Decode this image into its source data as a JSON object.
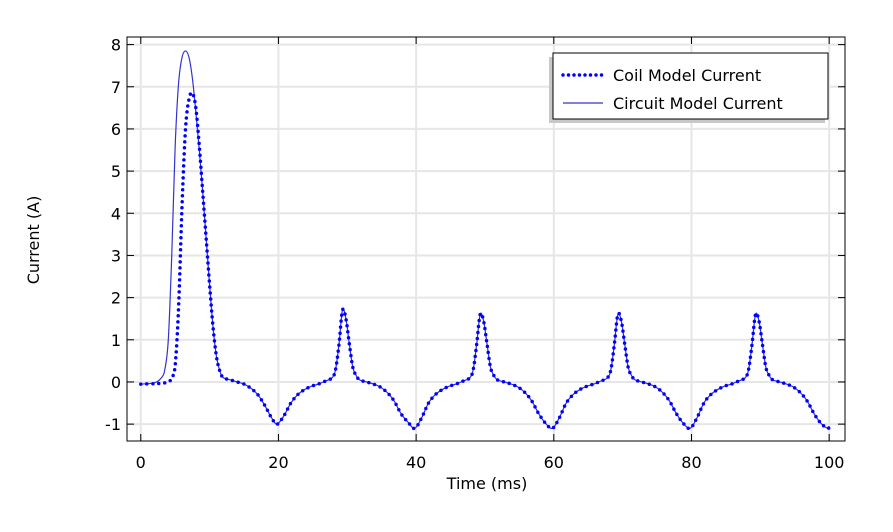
{
  "chart_data": {
    "type": "line",
    "title": "",
    "xlabel": "Time (ms)",
    "ylabel": "Current (A)",
    "xlim": [
      -2,
      102.3
    ],
    "ylim": [
      -1.4,
      8.18
    ],
    "xticks": [
      0,
      20,
      40,
      60,
      80,
      100
    ],
    "yticks": [
      -1,
      0,
      1,
      2,
      3,
      4,
      5,
      6,
      7,
      8
    ],
    "grid": true,
    "legend_position": "top-right",
    "series": [
      {
        "name": "Coil Model Current",
        "style": "dotted",
        "color": "#0000ff",
        "x": [
          0,
          2,
          3,
          4,
          4.5,
          5,
          5.5,
          6,
          6.5,
          7,
          7.5,
          8,
          8.5,
          9,
          9.5,
          10,
          10.5,
          11,
          11.5,
          12,
          13,
          14,
          15,
          16,
          17,
          18,
          19,
          19.8,
          20.8,
          21.8,
          22.8,
          23.8,
          24.8,
          25.8,
          26.8,
          27.8,
          28.3,
          28.8,
          29.3,
          29.8,
          30.3,
          30.8,
          31.3,
          31.8,
          32.8,
          33.8,
          34.8,
          35.8,
          36.8,
          37.8,
          38.8,
          39.8,
          40.8,
          41.8,
          42.8,
          43.8,
          44.8,
          45.8,
          46.8,
          47.8,
          48.3,
          48.8,
          49.3,
          49.8,
          50.3,
          50.8,
          51.3,
          51.8,
          52.8,
          53.8,
          54.8,
          55.8,
          56.8,
          57.8,
          58.8,
          59.8,
          60.8,
          61.8,
          62.8,
          63.8,
          64.8,
          65.8,
          66.8,
          67.8,
          68.3,
          68.8,
          69.3,
          69.8,
          70.3,
          70.8,
          71.3,
          71.8,
          72.8,
          73.8,
          74.8,
          75.8,
          76.8,
          77.8,
          78.8,
          79.8,
          80.8,
          81.8,
          82.8,
          83.8,
          84.8,
          85.8,
          86.8,
          87.8,
          88.3,
          88.8,
          89.3,
          89.8,
          90.3,
          90.8,
          91.3,
          91.8,
          92.8,
          93.8,
          94.8,
          95.8,
          96.8,
          97.8,
          98.8,
          99.8,
          100
        ],
        "y": [
          -0.05,
          -0.04,
          -0.03,
          0.0,
          0.1,
          0.4,
          1.8,
          4.2,
          6.0,
          6.7,
          6.85,
          6.5,
          5.6,
          4.5,
          3.4,
          2.3,
          1.3,
          0.6,
          0.25,
          0.1,
          0.05,
          0.0,
          -0.05,
          -0.15,
          -0.3,
          -0.55,
          -0.85,
          -1.0,
          -0.8,
          -0.5,
          -0.3,
          -0.18,
          -0.1,
          -0.05,
          0.02,
          0.1,
          0.3,
          0.9,
          1.7,
          1.5,
          0.9,
          0.35,
          0.15,
          0.05,
          0,
          -0.05,
          -0.12,
          -0.25,
          -0.45,
          -0.75,
          -0.95,
          -1.1,
          -0.85,
          -0.5,
          -0.3,
          -0.18,
          -0.1,
          -0.05,
          0.02,
          0.1,
          0.3,
          0.9,
          1.6,
          1.45,
          0.9,
          0.35,
          0.15,
          0.05,
          0,
          -0.05,
          -0.12,
          -0.25,
          -0.45,
          -0.75,
          -0.98,
          -1.1,
          -0.85,
          -0.5,
          -0.3,
          -0.18,
          -0.1,
          -0.05,
          0.02,
          0.1,
          0.3,
          0.9,
          1.6,
          1.45,
          0.9,
          0.35,
          0.15,
          0.05,
          0,
          -0.05,
          -0.12,
          -0.25,
          -0.45,
          -0.75,
          -0.98,
          -1.1,
          -0.85,
          -0.5,
          -0.3,
          -0.18,
          -0.1,
          -0.05,
          0.02,
          0.1,
          0.3,
          0.9,
          1.6,
          1.45,
          0.9,
          0.35,
          0.15,
          0.05,
          0,
          -0.05,
          -0.12,
          -0.25,
          -0.45,
          -0.75,
          -0.98,
          -1.1,
          -1.05
        ]
      },
      {
        "name": "Circuit Model Current",
        "style": "solid",
        "color": "#3333cc",
        "x": [
          0,
          2,
          3,
          3.5,
          4,
          4.5,
          5,
          5.5,
          6,
          6.5,
          7,
          7.5,
          8,
          8.5,
          9,
          9.5,
          10,
          10.5,
          11,
          11.5,
          12,
          13,
          14,
          15,
          16,
          17,
          18,
          19,
          19.8,
          20.8,
          21.8,
          22.8,
          23.8,
          24.8,
          25.8,
          26.8,
          27.8,
          28.3,
          28.8,
          29.3,
          29.8,
          30.3,
          30.8,
          31.3,
          31.8,
          32.8,
          33.8,
          34.8,
          35.8,
          36.8,
          37.8,
          38.8,
          39.8,
          40.8,
          41.8,
          42.8,
          43.8,
          44.8,
          45.8,
          46.8,
          47.8,
          48.3,
          48.8,
          49.3,
          49.8,
          50.3,
          50.8,
          51.3,
          51.8,
          52.8,
          53.8,
          54.8,
          55.8,
          56.8,
          57.8,
          58.8,
          59.8,
          60.8,
          61.8,
          62.8,
          63.8,
          64.8,
          65.8,
          66.8,
          67.8,
          68.3,
          68.8,
          69.3,
          69.8,
          70.3,
          70.8,
          71.3,
          71.8,
          72.8,
          73.8,
          74.8,
          75.8,
          76.8,
          77.8,
          78.8,
          79.8,
          80.8,
          81.8,
          82.8,
          83.8,
          84.8,
          85.8,
          86.8,
          87.8,
          88.3,
          88.8,
          89.3,
          89.8,
          90.3,
          90.8,
          91.3,
          91.8,
          92.8,
          93.8,
          94.8,
          95.8,
          96.8,
          97.8,
          98.8,
          99.8,
          100
        ],
        "y": [
          -0.05,
          -0.02,
          0.1,
          0.3,
          1.0,
          3.0,
          5.6,
          7.1,
          7.7,
          7.85,
          7.7,
          7.2,
          6.4,
          5.5,
          4.5,
          3.4,
          2.3,
          1.3,
          0.6,
          0.25,
          0.1,
          0.05,
          0.0,
          -0.05,
          -0.15,
          -0.3,
          -0.55,
          -0.85,
          -1.0,
          -0.8,
          -0.5,
          -0.3,
          -0.18,
          -0.1,
          -0.05,
          0.02,
          0.1,
          0.3,
          0.9,
          1.7,
          1.5,
          0.9,
          0.35,
          0.15,
          0.05,
          0,
          -0.05,
          -0.12,
          -0.25,
          -0.45,
          -0.75,
          -0.95,
          -1.1,
          -0.85,
          -0.5,
          -0.3,
          -0.18,
          -0.1,
          -0.05,
          0.02,
          0.1,
          0.3,
          0.9,
          1.6,
          1.45,
          0.9,
          0.35,
          0.15,
          0.05,
          0,
          -0.05,
          -0.12,
          -0.25,
          -0.45,
          -0.75,
          -0.98,
          -1.1,
          -0.85,
          -0.5,
          -0.3,
          -0.18,
          -0.1,
          -0.05,
          0.02,
          0.1,
          0.3,
          0.9,
          1.6,
          1.45,
          0.9,
          0.35,
          0.15,
          0.05,
          0,
          -0.05,
          -0.12,
          -0.25,
          -0.45,
          -0.75,
          -0.98,
          -1.1,
          -0.85,
          -0.5,
          -0.3,
          -0.18,
          -0.1,
          -0.05,
          0.02,
          0.1,
          0.3,
          0.9,
          1.6,
          1.45,
          0.9,
          0.35,
          0.15,
          0.05,
          0,
          -0.05,
          -0.12,
          -0.25,
          -0.45,
          -0.75,
          -0.98,
          -1.1,
          -1.05
        ]
      }
    ]
  }
}
